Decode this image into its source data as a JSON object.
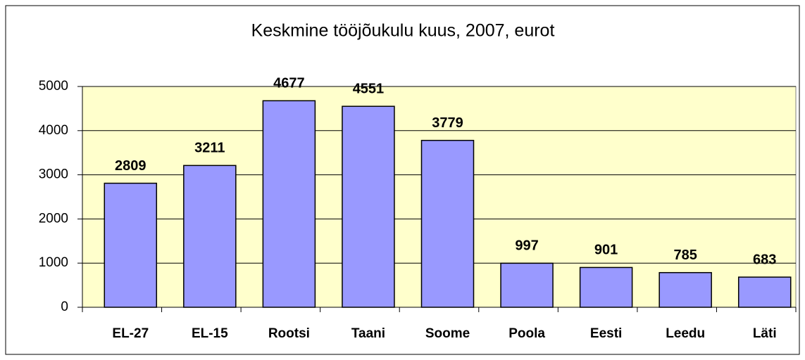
{
  "chart_data": {
    "type": "bar",
    "title": "Keskmine tööjõukulu kuus, 2007, eurot",
    "categories": [
      "EL-27",
      "EL-15",
      "Rootsi",
      "Taani",
      "Soome",
      "Poola",
      "Eesti",
      "Leedu",
      "Läti"
    ],
    "values": [
      2809,
      3211,
      4677,
      4551,
      3779,
      997,
      901,
      785,
      683
    ],
    "color": "#9999ff",
    "ylim": [
      0,
      5000
    ],
    "yticks": [
      0,
      1000,
      2000,
      3000,
      4000,
      5000
    ],
    "grid": true
  }
}
